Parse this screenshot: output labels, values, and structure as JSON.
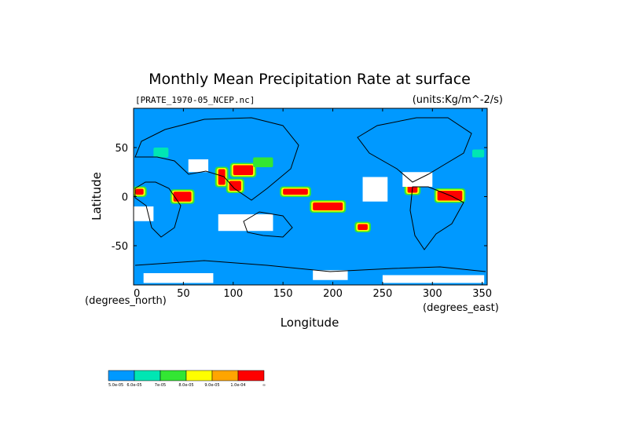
{
  "chart_data": {
    "type": "heatmap",
    "title": "Monthly Mean Precipitation Rate at surface",
    "subtitle": "[PRATE_1970-05_NCEP.nc]",
    "units_label": "(units:Kg/m^-2/s)",
    "xlabel": "Longitude",
    "ylabel": "Latitude",
    "x_unit_label": "(degrees_east)",
    "y_unit_label": "(degrees_north)",
    "xlim": [
      0,
      355
    ],
    "ylim": [
      -90,
      90
    ],
    "x_ticks": [
      "0",
      "50",
      "100",
      "150",
      "200",
      "250",
      "300",
      "350"
    ],
    "x_tick_values": [
      0,
      50,
      100,
      150,
      200,
      250,
      300,
      350
    ],
    "y_ticks": [
      "50",
      "0",
      "-50"
    ],
    "y_tick_values": [
      50,
      0,
      -50
    ],
    "background_color": "#0099ff",
    "legend": {
      "placement": "bottom-left",
      "colors": [
        "#0099ff",
        "#00e6b3",
        "#33e633",
        "#ffff00",
        "#ffa500",
        "#ff0000"
      ],
      "labels": [
        "5.0e-05",
        "6.0e-05",
        "7e-05",
        "8.0e-05",
        "9.0e-05",
        "1.0e-04",
        "∞"
      ]
    },
    "regions": [
      {
        "level": 5,
        "lon": [
          85,
          92
        ],
        "lat": [
          12,
          28
        ]
      },
      {
        "level": 5,
        "lon": [
          100,
          120
        ],
        "lat": [
          22,
          32
        ]
      },
      {
        "level": 5,
        "lon": [
          96,
          108
        ],
        "lat": [
          6,
          16
        ]
      },
      {
        "level": 5,
        "lon": [
          40,
          58
        ],
        "lat": [
          -5,
          5
        ]
      },
      {
        "level": 5,
        "lon": [
          150,
          175
        ],
        "lat": [
          2,
          8
        ]
      },
      {
        "level": 5,
        "lon": [
          180,
          210
        ],
        "lat": [
          -14,
          -6
        ]
      },
      {
        "level": 5,
        "lon": [
          275,
          285
        ],
        "lat": [
          4,
          12
        ]
      },
      {
        "level": 5,
        "lon": [
          305,
          330
        ],
        "lat": [
          -4,
          6
        ]
      },
      {
        "level": 5,
        "lon": [
          2,
          10
        ],
        "lat": [
          2,
          8
        ]
      },
      {
        "level": 5,
        "lon": [
          225,
          235
        ],
        "lat": [
          -34,
          -28
        ]
      },
      {
        "level": 1,
        "lon": [
          20,
          35
        ],
        "lat": [
          40,
          50
        ]
      },
      {
        "level": 1,
        "lon": [
          340,
          352
        ],
        "lat": [
          40,
          48
        ]
      },
      {
        "level": 2,
        "lon": [
          120,
          140
        ],
        "lat": [
          30,
          40
        ]
      }
    ],
    "dry_regions": [
      {
        "lon": [
          0,
          20
        ],
        "lat": [
          -25,
          -10
        ]
      },
      {
        "lon": [
          85,
          140
        ],
        "lat": [
          -35,
          -18
        ]
      },
      {
        "lon": [
          55,
          75
        ],
        "lat": [
          25,
          38
        ]
      },
      {
        "lon": [
          230,
          255
        ],
        "lat": [
          -5,
          20
        ]
      },
      {
        "lon": [
          270,
          300
        ],
        "lat": [
          10,
          25
        ]
      },
      {
        "lon": [
          180,
          215
        ],
        "lat": [
          -85,
          -75
        ]
      },
      {
        "lon": [
          10,
          80
        ],
        "lat": [
          -88,
          -78
        ]
      },
      {
        "lon": [
          250,
          352
        ],
        "lat": [
          -88,
          -80
        ]
      }
    ]
  }
}
